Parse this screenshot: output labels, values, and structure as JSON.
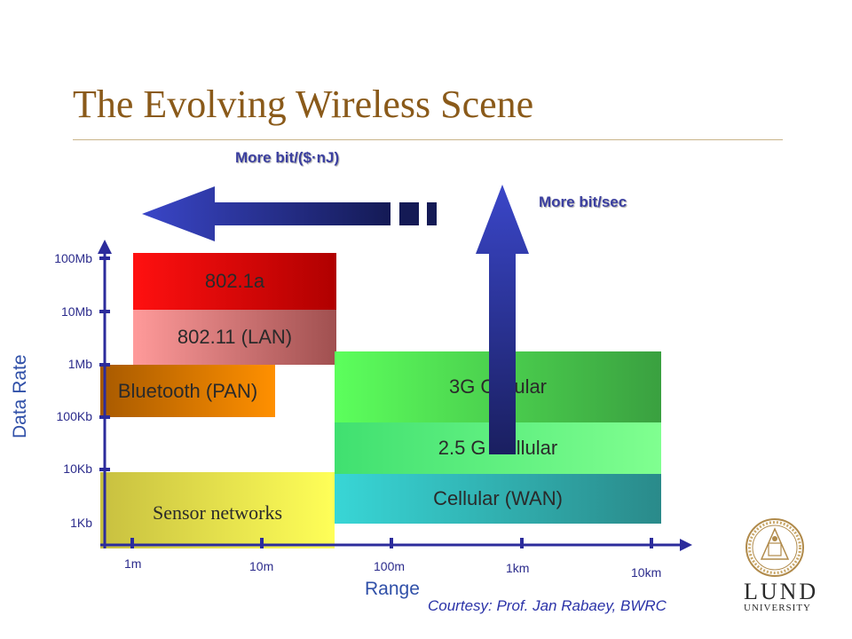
{
  "slide": {
    "title": "The Evolving Wireless Scene",
    "courtesy": "Courtesy: Prof. Jan Rabaey, BWRC"
  },
  "arrows": {
    "left_label": "More bit/($·nJ)",
    "up_label": "More bit/sec"
  },
  "axes": {
    "y_title": "Data Rate",
    "x_title": "Range",
    "y_ticks": [
      "100Mb",
      "10Mb",
      "1Mb",
      "100Kb",
      "10Kb",
      "1Kb"
    ],
    "x_ticks": [
      "1m",
      "10m",
      "100m",
      "1km",
      "10km"
    ]
  },
  "bands": [
    {
      "id": "wifi-a",
      "label": "802.1a"
    },
    {
      "id": "wifi-lan",
      "label": "802.11 (LAN)"
    },
    {
      "id": "bluetooth",
      "label": "Bluetooth (PAN)"
    },
    {
      "id": "sensor",
      "label": "Sensor networks"
    },
    {
      "id": "cell-3g",
      "label": "3G Cellular"
    },
    {
      "id": "cell-25g",
      "label": "2.5 G Cellular"
    },
    {
      "id": "cell-wan",
      "label": "Cellular (WAN)"
    }
  ],
  "logo": {
    "name_top": "LUND",
    "name_bottom": "UNIVERSITY"
  }
}
